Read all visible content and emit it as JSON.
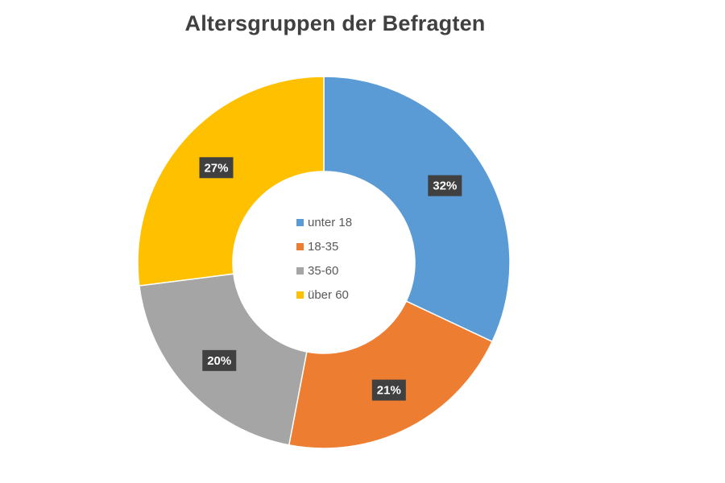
{
  "chart_data": {
    "type": "pie",
    "title": "Altersgruppen der Befragten",
    "categories": [
      "unter 18",
      "18-35",
      "35-60",
      "über 60"
    ],
    "values": [
      32,
      21,
      20,
      27
    ],
    "labels": [
      "32%",
      "21%",
      "20%",
      "27%"
    ],
    "colors": [
      "#5B9BD5",
      "#ED7D31",
      "#A5A5A5",
      "#FFC000"
    ],
    "label_background": "#404040",
    "legend_position": "center",
    "hole": true
  }
}
